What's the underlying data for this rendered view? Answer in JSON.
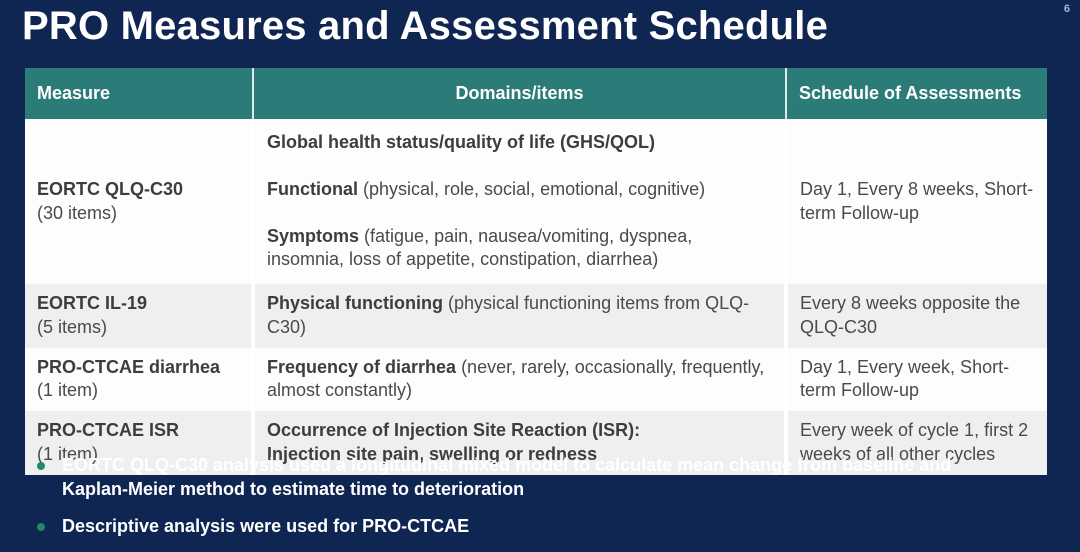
{
  "slide": {
    "title": "PRO Measures and Assessment Schedule",
    "page_number": "6",
    "colors": {
      "background": "#0F2552",
      "table_header": "#2B7C79",
      "row_alt": "#EFEFEF",
      "bullet": "#1E8A66",
      "title_text": "#FFFFFF"
    }
  },
  "table": {
    "headers": [
      "Measure",
      "Domains/items",
      "Schedule of Assessments"
    ],
    "rows": [
      {
        "measure": "EORTC QLQ-C30",
        "measure_sub": "(30 items)",
        "domains": [
          {
            "bold": "Global health status/quality of life (GHS/QOL)",
            "rest": ""
          },
          {
            "bold": "Functional",
            "rest": " (physical, role, social, emotional, cognitive)"
          },
          {
            "bold": "Symptoms",
            "rest": " (fatigue, pain, nausea/vomiting, dyspnea, insomnia, loss of appetite, constipation, diarrhea)"
          }
        ],
        "schedule": "Day 1, Every 8 weeks, Short-term Follow-up"
      },
      {
        "measure": "EORTC IL-19",
        "measure_sub": "(5 items)",
        "domains": [
          {
            "bold": "Physical functioning",
            "rest": " (physical functioning items from QLQ-C30)"
          }
        ],
        "schedule": "Every 8 weeks opposite the QLQ-C30"
      },
      {
        "measure": "PRO-CTCAE diarrhea",
        "measure_sub": "(1 item)",
        "domains": [
          {
            "bold": "Frequency of diarrhea",
            "rest": " (never, rarely, occasionally, frequently, almost constantly)"
          }
        ],
        "schedule": "Day 1, Every week, Short-term Follow-up"
      },
      {
        "measure": "PRO-CTCAE ISR",
        "measure_sub": "(1 item)",
        "domains": [
          {
            "bold": "Occurrence of Injection Site Reaction (ISR):",
            "rest": ""
          },
          {
            "bold": "Injection site pain, swelling or redness",
            "rest": ""
          }
        ],
        "schedule": "Every week of cycle 1, first 2 weeks of all other cycles"
      }
    ]
  },
  "notes": [
    "EORTC QLQ-C30 analysis used a longitudinal mixed model to calculate mean change from baseline and Kaplan-Meier method to estimate time to deterioration",
    "Descriptive analysis were used for PRO-CTCAE"
  ]
}
